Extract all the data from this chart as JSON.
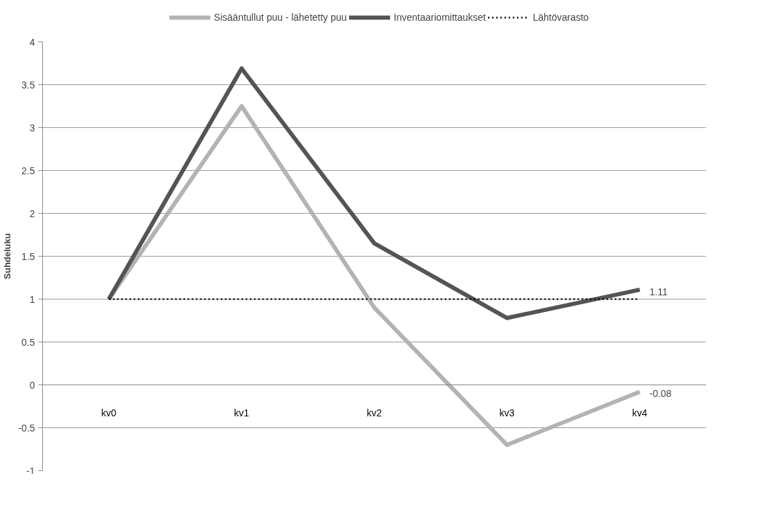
{
  "chart_data": {
    "type": "line",
    "ylabel": "Suhdeluku",
    "categories": [
      "kv0",
      "kv1",
      "kv2",
      "kv3",
      "kv4"
    ],
    "series": [
      {
        "name": "Sisääntullut puu - lähetetty puu",
        "color": "#b3b3b3",
        "values": [
          1,
          3.25,
          0.9,
          -0.7,
          -0.08
        ],
        "value_labels": [
          null,
          null,
          null,
          null,
          "-0.08"
        ]
      },
      {
        "name": "Inventaariomittaukset",
        "color": "#545454",
        "values": [
          1,
          3.69,
          1.65,
          0.78,
          1.11
        ],
        "value_labels": [
          null,
          null,
          null,
          null,
          "1.11"
        ]
      },
      {
        "name": "Lähtövarasto",
        "color": "#000000",
        "values": [
          1,
          1,
          1,
          1,
          1
        ],
        "line_style": "dotted"
      }
    ],
    "ylim": [
      -1,
      4
    ],
    "yticks": [
      -1,
      -0.5,
      0,
      0.5,
      1,
      1.5,
      2,
      2.5,
      3,
      3.5,
      4
    ],
    "grid": "y",
    "legend": "top"
  }
}
